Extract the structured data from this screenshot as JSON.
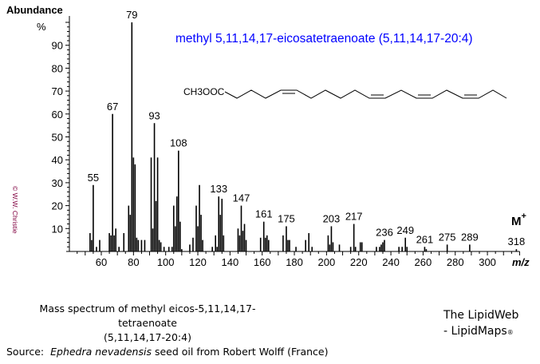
{
  "chart_data": {
    "type": "bar",
    "title": "methyl 5,11,14,17-eicosatetraenoate (5,11,14,17-20:4)",
    "title_color": "#0000ff",
    "ylabel": "Abundance",
    "yunit": "%",
    "xlabel": "m/z",
    "xlim": [
      40,
      320
    ],
    "ylim": [
      0,
      100
    ],
    "xticks": [
      60,
      80,
      100,
      120,
      140,
      160,
      180,
      200,
      220,
      240,
      260,
      280,
      300
    ],
    "yticks": [
      10,
      20,
      30,
      40,
      50,
      60,
      70,
      80,
      90
    ],
    "grid": false,
    "structure_label": "CH3OOC",
    "molecular_ion_label": "M+",
    "peaks": [
      [
        53,
        8
      ],
      [
        54,
        5
      ],
      [
        55,
        29
      ],
      [
        57,
        2
      ],
      [
        59,
        5
      ],
      [
        65,
        8
      ],
      [
        66,
        7
      ],
      [
        67,
        60
      ],
      [
        68,
        7
      ],
      [
        69,
        10
      ],
      [
        71,
        2
      ],
      [
        74,
        8
      ],
      [
        77,
        20
      ],
      [
        78,
        16
      ],
      [
        79,
        100
      ],
      [
        80,
        41
      ],
      [
        81,
        38
      ],
      [
        82,
        6
      ],
      [
        83,
        5
      ],
      [
        85,
        5
      ],
      [
        87,
        5
      ],
      [
        91,
        41
      ],
      [
        92,
        10
      ],
      [
        93,
        56
      ],
      [
        94,
        22
      ],
      [
        95,
        41
      ],
      [
        96,
        5
      ],
      [
        97,
        4
      ],
      [
        99,
        2
      ],
      [
        102,
        2
      ],
      [
        104,
        2
      ],
      [
        105,
        20
      ],
      [
        106,
        11
      ],
      [
        107,
        24
      ],
      [
        108,
        44
      ],
      [
        109,
        13
      ],
      [
        110,
        1
      ],
      [
        115,
        3
      ],
      [
        117,
        6
      ],
      [
        119,
        20
      ],
      [
        120,
        11
      ],
      [
        121,
        29
      ],
      [
        122,
        16
      ],
      [
        123,
        5
      ],
      [
        129,
        2
      ],
      [
        131,
        7
      ],
      [
        132,
        2
      ],
      [
        133,
        24
      ],
      [
        134,
        16
      ],
      [
        135,
        23
      ],
      [
        136,
        7
      ],
      [
        145,
        10
      ],
      [
        146,
        7
      ],
      [
        147,
        20
      ],
      [
        148,
        9
      ],
      [
        149,
        12
      ],
      [
        150,
        5
      ],
      [
        159,
        6
      ],
      [
        161,
        13
      ],
      [
        162,
        6
      ],
      [
        163,
        7
      ],
      [
        164,
        5
      ],
      [
        173,
        7
      ],
      [
        175,
        11
      ],
      [
        176,
        5
      ],
      [
        177,
        5
      ],
      [
        181,
        2
      ],
      [
        187,
        5
      ],
      [
        189,
        8
      ],
      [
        191,
        2
      ],
      [
        201,
        7
      ],
      [
        202,
        3
      ],
      [
        203,
        11
      ],
      [
        204,
        4
      ],
      [
        208,
        3
      ],
      [
        215,
        2
      ],
      [
        217,
        12
      ],
      [
        218,
        2
      ],
      [
        221,
        4
      ],
      [
        222,
        4
      ],
      [
        231,
        2
      ],
      [
        233,
        2
      ],
      [
        234,
        3
      ],
      [
        235,
        4
      ],
      [
        236,
        5
      ],
      [
        245,
        2
      ],
      [
        247,
        2
      ],
      [
        249,
        6
      ],
      [
        250,
        2
      ],
      [
        261,
        2
      ],
      [
        262,
        1
      ],
      [
        275,
        3
      ],
      [
        289,
        3
      ],
      [
        318,
        1
      ]
    ],
    "annotations": [
      "55",
      "67",
      "79",
      "93",
      "108",
      "133",
      "147",
      "161",
      "175",
      "203",
      "217",
      "236",
      "249",
      "261",
      "275",
      "289",
      "318"
    ]
  },
  "copyright": "© W.W. Christie",
  "caption": {
    "line1": "Mass spectrum of methyl eicos-5,11,14,17-tetraenoate",
    "line2": "(5,11,14,17-20:4)"
  },
  "brand": {
    "line1": "The LipidWeb",
    "line2": "- LipidMaps",
    "mark": "®"
  },
  "source": {
    "prefix": "Source:",
    "species": "Ephedra nevadensis",
    "suffix": "seed oil from Robert Wolff (France)"
  }
}
